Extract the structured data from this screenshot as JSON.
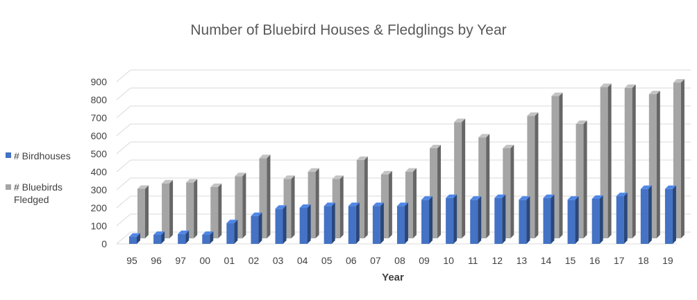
{
  "chart_data": {
    "type": "bar",
    "title": "Number of Bluebird Houses & Fledglings by Year",
    "xlabel": "Year",
    "ylabel": "",
    "ylim": [
      0,
      900
    ],
    "yticks": [
      "0",
      "100",
      "200",
      "300",
      "400",
      "500",
      "600",
      "700",
      "800",
      "900"
    ],
    "categories": [
      "95",
      "96",
      "97",
      "00",
      "01",
      "02",
      "03",
      "04",
      "05",
      "06",
      "07",
      "08",
      "09",
      "10",
      "11",
      "12",
      "13",
      "14",
      "15",
      "16",
      "17",
      "18",
      "19"
    ],
    "series": [
      {
        "name": "# Birdhouses",
        "color": "#4472C4",
        "values": [
          40,
          50,
          55,
          50,
          115,
          155,
          195,
          200,
          210,
          210,
          210,
          210,
          245,
          255,
          245,
          255,
          245,
          255,
          245,
          250,
          265,
          305,
          305
        ]
      },
      {
        "name": "# Bluebirds Fledged",
        "color": "#A5A5A5",
        "values": [
          275,
          305,
          310,
          285,
          345,
          445,
          330,
          370,
          330,
          435,
          355,
          370,
          500,
          645,
          560,
          500,
          680,
          790,
          635,
          840,
          835,
          800,
          865
        ]
      }
    ],
    "legend": {
      "position": "left",
      "labels": [
        "# Birdhouses",
        "# Bluebirds",
        "Fledged"
      ]
    },
    "grid": true,
    "style": "3d-column"
  }
}
